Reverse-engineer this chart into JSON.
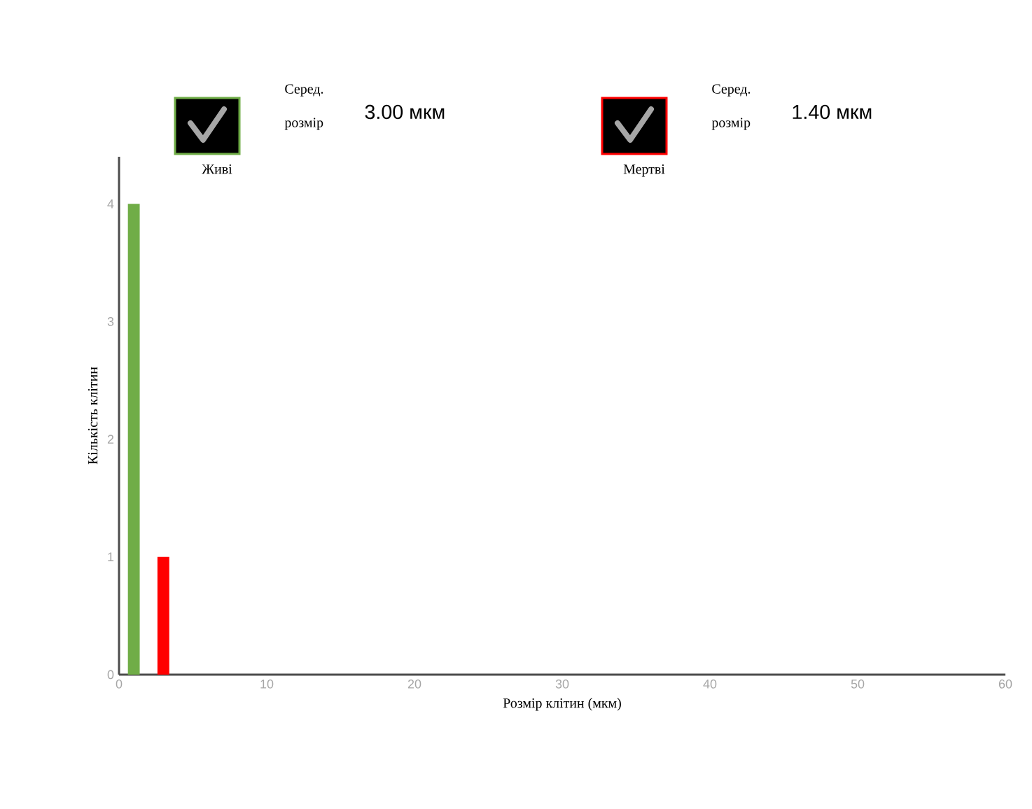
{
  "chart_data": {
    "type": "bar",
    "xlabel": "Розмір клітин (мкм)",
    "ylabel": "Кількість клітин",
    "series": [
      {
        "name": "Живі",
        "color": "#70ad47",
        "x": [
          1
        ],
        "values": [
          4
        ]
      },
      {
        "name": "Мертві",
        "color": "#ff0000",
        "x": [
          3
        ],
        "values": [
          1
        ]
      }
    ],
    "annotations": [
      "Серед. розмір",
      "3.00 мкм",
      "Серед. розмір",
      "1.40 мкм"
    ],
    "xlim": [
      0,
      60
    ],
    "xticks": [
      0,
      10,
      20,
      30,
      40,
      50,
      60
    ],
    "ylim": [
      0,
      4.4
    ],
    "yticks": [
      0,
      1,
      2,
      3,
      4
    ],
    "legend": "top",
    "grid": false
  }
}
